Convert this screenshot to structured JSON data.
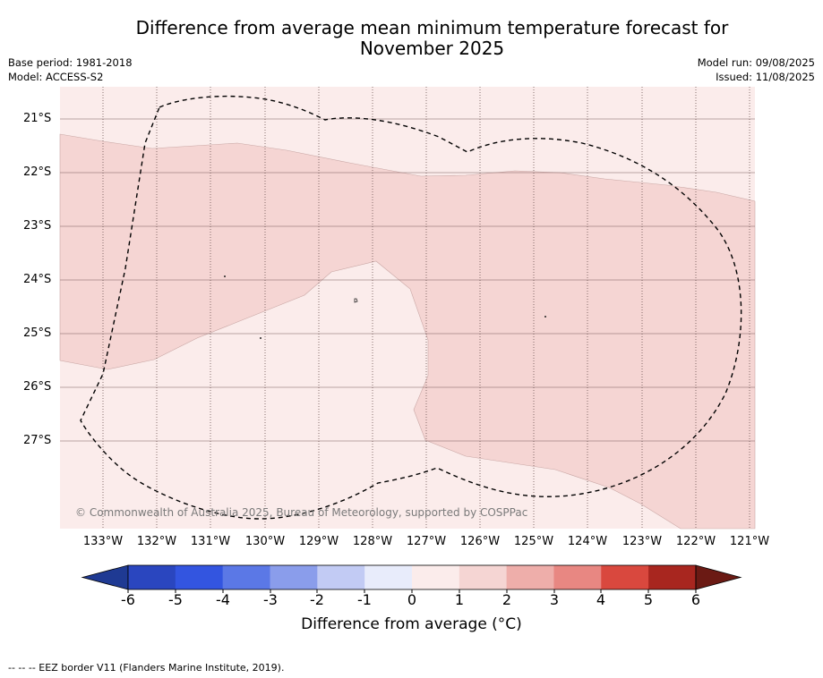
{
  "title_line1": "Difference from average mean minimum temperature forecast for",
  "title_line2": "November 2025",
  "base_period": "Base period: 1981-2018",
  "model": "Model: ACCESS-S2",
  "model_run": "Model run: 09/08/2025",
  "issued": "Issued: 11/08/2025",
  "lat_labels": [
    "21°S",
    "22°S",
    "23°S",
    "24°S",
    "25°S",
    "26°S",
    "27°S"
  ],
  "lon_labels": [
    "133°W",
    "132°W",
    "131°W",
    "130°W",
    "129°W",
    "128°W",
    "127°W",
    "126°W",
    "125°W",
    "124°W",
    "123°W",
    "122°W",
    "121°W"
  ],
  "colorbar_ticks": [
    "-6",
    "-5",
    "-4",
    "-3",
    "-2",
    "-1",
    "0",
    "1",
    "2",
    "3",
    "4",
    "5",
    "6"
  ],
  "colorbar_colors": [
    "#1f3a93",
    "#2a46bf",
    "#3355e0",
    "#5b78e6",
    "#8a9deb",
    "#c2cbf4",
    "#e8ecfb",
    "#fbeceb",
    "#f5d5d3",
    "#eeaeaa",
    "#e88782",
    "#d9483e",
    "#a8261f",
    "#6b1a14"
  ],
  "colorbar_title": "Difference from average (°C)",
  "copyright": "© Commonwealth of Australia 2025, Bureau of Meteorology, supported by COSPPac",
  "footnote": "--  --  -- EEZ border V11 (Flanders Marine Institute, 2019).",
  "legend_colors": {
    "band_0_1": "#fbeceb",
    "band_1_2": "#f5d5d3",
    "eez_line": "#000000"
  }
}
